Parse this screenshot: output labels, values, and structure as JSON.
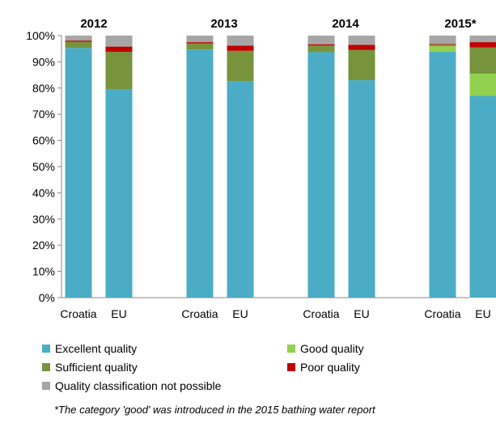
{
  "chart_data": {
    "type": "bar",
    "stacked": true,
    "categories": [
      "Croatia",
      "EU",
      "Croatia",
      "EU",
      "Croatia",
      "EU",
      "Croatia",
      "EU"
    ],
    "groups": [
      {
        "label": "2012",
        "categories": [
          "Croatia",
          "EU"
        ]
      },
      {
        "label": "2013",
        "categories": [
          "Croatia",
          "EU"
        ]
      },
      {
        "label": "2014",
        "categories": [
          "Croatia",
          "EU"
        ]
      },
      {
        "label": "2015*",
        "categories": [
          "Croatia",
          "EU"
        ]
      }
    ],
    "series": [
      {
        "name": "Excellent quality",
        "color": "#4bacc6",
        "values": [
          95.3,
          79.5,
          94.7,
          82.7,
          93.7,
          83.0,
          93.8,
          77.0
        ]
      },
      {
        "name": "Good quality",
        "color": "#92d050",
        "values": [
          0,
          0,
          0,
          0,
          0,
          0,
          2.2,
          8.5
        ]
      },
      {
        "name": "Sufficient quality",
        "color": "#77933c",
        "values": [
          2.3,
          14.3,
          2.3,
          11.5,
          2.5,
          11.5,
          0.5,
          10.0
        ]
      },
      {
        "name": "Poor quality",
        "color": "#c00000",
        "values": [
          0.5,
          2.0,
          0.5,
          2.0,
          0.5,
          2.0,
          0.3,
          2.0
        ]
      },
      {
        "name": "Quality classification not possible",
        "color": "#a6a6a6",
        "values": [
          1.9,
          4.2,
          2.5,
          3.8,
          3.3,
          3.5,
          3.2,
          2.5
        ]
      }
    ],
    "yticks": [
      "0%",
      "10%",
      "20%",
      "30%",
      "40%",
      "50%",
      "60%",
      "70%",
      "80%",
      "90%",
      "100%"
    ],
    "ylim": [
      0,
      100
    ],
    "title": "",
    "xlabel": "",
    "ylabel": "",
    "grid": false,
    "legend_position": "bottom",
    "footnote": "*The category 'good' was introduced  in the 2015 bathing water report"
  }
}
